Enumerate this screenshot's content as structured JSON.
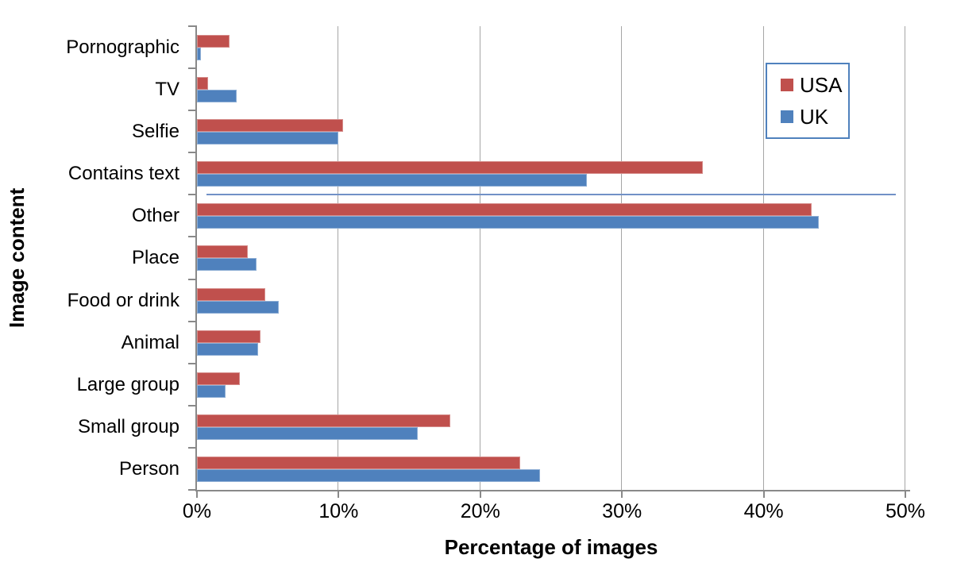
{
  "chart_data": {
    "type": "bar",
    "orientation": "horizontal",
    "title": "",
    "xlabel": "Percentage of images",
    "ylabel": "Image content",
    "xlim": [
      0,
      50
    ],
    "x_ticks": [
      "0%",
      "10%",
      "20%",
      "30%",
      "40%",
      "50%"
    ],
    "grid": "vertical-only",
    "legend_position": "top-right-boxed",
    "categories": [
      "Pornographic",
      "TV",
      "Selfie",
      "Contains text",
      "Other",
      "Place",
      "Food or drink",
      "Animal",
      "Large group",
      "Small group",
      "Person"
    ],
    "series": [
      {
        "name": "USA",
        "color": "#C0504D",
        "values": [
          2.3,
          0.8,
          10.3,
          35.7,
          43.4,
          3.6,
          4.8,
          4.5,
          3.0,
          17.9,
          22.8
        ]
      },
      {
        "name": "UK",
        "color": "#4F81BD",
        "values": [
          0.3,
          2.8,
          10.0,
          27.5,
          43.9,
          4.2,
          5.8,
          4.3,
          2.0,
          15.6,
          24.2
        ]
      }
    ],
    "artifact_line": {
      "description": "stray thin blue line on boundary between Contains text and Other",
      "boundary_index": 4,
      "from_pct": 0.7,
      "to_pct": 49.3,
      "color": "#7191C7"
    }
  },
  "style_colors": {
    "gridline": "#a6a6a6",
    "axis": "#898989",
    "legend_border": "#4F81BD",
    "background": "#ffffff",
    "text": "#000000"
  }
}
